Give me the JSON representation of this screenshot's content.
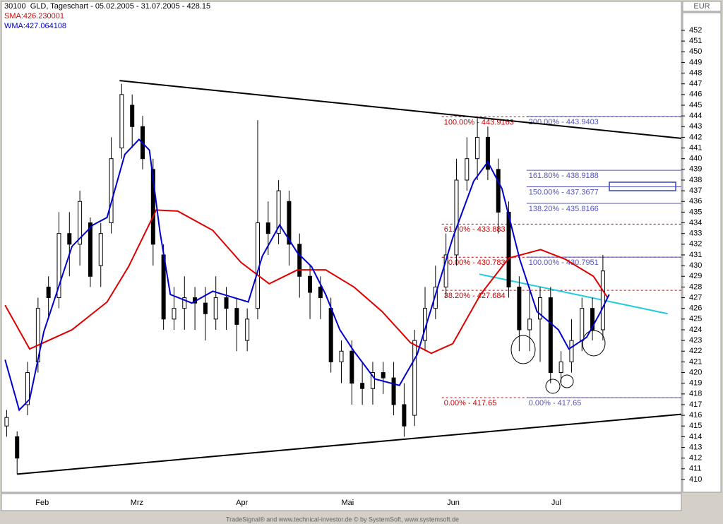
{
  "chart_data": {
    "type": "candlestick",
    "title": "30100  GLD, Tageschart - 05.02.2005 - 31.07.2005 - 428.15",
    "currency": "EUR",
    "footer": "TradeSignal® and www.technical-investor.de © by SystemSoft, www.systemsoft.de",
    "xlim": [
      0,
      130
    ],
    "xticks": [
      {
        "value": 7.8,
        "label": "Feb"
      },
      {
        "value": 25.9,
        "label": "Mrz"
      },
      {
        "value": 46,
        "label": "Apr"
      },
      {
        "value": 66.2,
        "label": "Mai"
      },
      {
        "value": 86.4,
        "label": "Jun"
      },
      {
        "value": 106.1,
        "label": "Jul"
      }
    ],
    "ylim": [
      409,
      454
    ],
    "yticks": [
      410,
      411,
      412,
      413,
      414,
      415,
      416,
      417,
      418,
      419,
      420,
      421,
      422,
      423,
      424,
      425,
      426,
      427,
      428,
      429,
      430,
      431,
      432,
      433,
      434,
      435,
      436,
      437,
      438,
      439,
      440,
      441,
      442,
      443,
      444,
      445,
      446,
      447,
      448,
      449,
      450,
      451,
      452
    ],
    "candles": {
      "x": [
        1,
        3,
        5,
        7,
        9,
        11,
        13,
        15,
        17,
        19,
        21,
        23,
        25,
        27,
        29,
        31,
        33,
        35,
        37,
        39,
        41,
        43,
        45,
        47,
        49,
        51,
        53,
        55,
        57,
        59,
        61,
        63,
        65,
        67,
        69,
        71,
        73,
        75,
        77,
        79,
        81,
        83,
        85,
        87,
        89,
        91,
        93,
        95,
        97,
        99,
        101,
        103,
        105,
        107,
        109,
        111,
        113,
        115
      ],
      "open": [
        415,
        414,
        417,
        421,
        428,
        427,
        433,
        432,
        434,
        430,
        434,
        441,
        445,
        443,
        439,
        431,
        425,
        426,
        427,
        426.5,
        425,
        427,
        426,
        423,
        426,
        434,
        433,
        436,
        432,
        429,
        428,
        426,
        421,
        422,
        419,
        418.5,
        420,
        419.5,
        417,
        416,
        423,
        426,
        428,
        431,
        438,
        440,
        442,
        439,
        435,
        428,
        424,
        425,
        427,
        420,
        421,
        423,
        426,
        424
      ],
      "high": [
        416.5,
        414.5,
        421,
        427,
        429,
        435,
        435,
        437,
        434.5,
        434,
        442,
        447,
        446,
        444,
        440,
        432,
        428,
        429,
        428,
        428,
        429,
        428,
        427,
        426,
        443.6,
        436,
        438,
        437,
        433,
        430,
        429,
        427,
        423,
        423,
        421,
        421,
        421,
        421,
        419,
        424,
        428,
        430,
        433,
        440,
        442,
        443.9,
        443,
        440,
        436,
        429,
        428,
        428,
        428,
        422,
        425,
        427,
        427,
        431
      ],
      "low": [
        414,
        410.5,
        416,
        420,
        425,
        426,
        429,
        430,
        428,
        428,
        433,
        440,
        441,
        439,
        430,
        424,
        424,
        424,
        424,
        423,
        424,
        424,
        422,
        422,
        425,
        431,
        432,
        430,
        427,
        425,
        425,
        420,
        419,
        417,
        417,
        417,
        418,
        416,
        414,
        415,
        422,
        425,
        427,
        430,
        437,
        438,
        438,
        433,
        427,
        422,
        422,
        421,
        419,
        419,
        420,
        422,
        423,
        423
      ],
      "close": [
        415.8,
        412,
        420,
        426,
        427,
        433,
        432,
        436,
        429,
        433,
        440,
        446,
        443,
        440,
        432,
        425,
        426,
        427,
        426.5,
        425.5,
        427,
        426,
        424.5,
        425,
        434,
        433,
        437,
        432,
        429,
        427.5,
        427,
        421,
        422,
        419,
        418.5,
        420,
        419.5,
        417,
        415,
        423,
        426,
        428,
        431,
        438,
        440,
        442,
        439,
        435,
        428,
        424,
        425,
        427,
        420,
        421,
        423,
        426,
        424,
        429.5
      ]
    },
    "series": [
      {
        "name": "SMA:426.230001",
        "color": "#dd0000",
        "x": [
          0.7,
          5.4,
          13.5,
          20.2,
          24.3,
          29.6,
          33.7,
          40.4,
          45.8,
          51.2,
          56.6,
          62,
          67.4,
          72.8,
          78.2,
          82.2,
          86.3,
          91.6,
          97,
          103.1,
          107.8,
          113.2,
          115.9
        ],
        "y": [
          426.3,
          422.2,
          424,
          426.6,
          429.9,
          435.2,
          435.1,
          433.3,
          430.3,
          428.3,
          429.6,
          429.6,
          428,
          425.7,
          422.8,
          421.8,
          422.7,
          427.3,
          430.7,
          431.5,
          430.6,
          429,
          427
        ]
      },
      {
        "name": "WMA:427.064108",
        "color": "#0000cc",
        "x": [
          0.7,
          3.4,
          5.4,
          8.1,
          13.5,
          17.5,
          20.2,
          23.6,
          26.3,
          28.3,
          30.3,
          32.3,
          36.4,
          40.4,
          44.5,
          47.2,
          49.9,
          53.2,
          56.6,
          59.3,
          62,
          64.7,
          67.4,
          71.4,
          76.1,
          79.5,
          82.2,
          86.3,
          90.3,
          93,
          95.7,
          99.1,
          102.4,
          106.5,
          108.5,
          111.9,
          114.6,
          116.2
        ],
        "y": [
          421.2,
          416.5,
          417.5,
          423.8,
          431.8,
          433.8,
          434.5,
          440.4,
          441.8,
          440.8,
          433.2,
          427.3,
          426.5,
          427.6,
          427,
          426.6,
          430.9,
          433.8,
          431.2,
          429.9,
          427.3,
          424,
          422,
          419.4,
          418.8,
          421.7,
          426,
          432.6,
          437.9,
          439.7,
          437.2,
          430.6,
          425.7,
          424,
          422.2,
          423.3,
          425.7,
          427.3
        ]
      }
    ],
    "trendlines": [
      {
        "color": "#000000",
        "x": [
          22.6,
          130
        ],
        "y": [
          447.3,
          441.9
        ]
      },
      {
        "color": "#000000",
        "x": [
          3,
          130
        ],
        "y": [
          410.5,
          416.1
        ]
      },
      {
        "color": "#22ccdd",
        "x": [
          91.4,
          127.4
        ],
        "y": [
          429.2,
          425.5
        ]
      }
    ],
    "fib_levels": [
      {
        "color": "#cc0000",
        "from": 84.2,
        "levels": [
          {
            "label": "100.00% - 443.9163",
            "value": 443.9163
          },
          {
            "label": "61.80% - 433.883",
            "value": 433.883
          },
          {
            "label": "50.00% - 430.783",
            "value": 430.783
          },
          {
            "label": "38.20% - 427.684",
            "value": 427.684
          },
          {
            "label": "0.00% - 417.65",
            "value": 417.65
          }
        ]
      },
      {
        "color": "#5555bb",
        "from": 100.4,
        "levels": [
          {
            "label": "200.00% - 443.9403",
            "value": 443.9403
          },
          {
            "label": "161.80% - 438.9188",
            "value": 438.9188
          },
          {
            "label": "150.00% - 437.3677",
            "value": 437.3677
          },
          {
            "label": "138.20% - 435.8166",
            "value": 435.8166
          },
          {
            "label": "100.00% - 430.7951",
            "value": 430.7951
          },
          {
            "label": "0.00% - 417.65",
            "value": 417.65
          }
        ]
      }
    ]
  }
}
